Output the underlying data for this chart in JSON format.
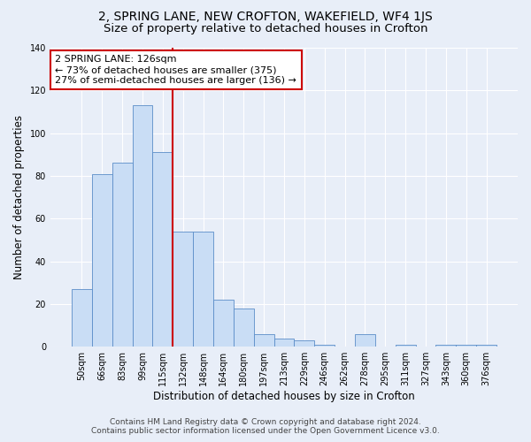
{
  "title": "2, SPRING LANE, NEW CROFTON, WAKEFIELD, WF4 1JS",
  "subtitle": "Size of property relative to detached houses in Crofton",
  "xlabel": "Distribution of detached houses by size in Crofton",
  "ylabel": "Number of detached properties",
  "footer_line1": "Contains HM Land Registry data © Crown copyright and database right 2024.",
  "footer_line2": "Contains public sector information licensed under the Open Government Licence v3.0.",
  "bar_labels": [
    "50sqm",
    "66sqm",
    "83sqm",
    "99sqm",
    "115sqm",
    "132sqm",
    "148sqm",
    "164sqm",
    "180sqm",
    "197sqm",
    "213sqm",
    "229sqm",
    "246sqm",
    "262sqm",
    "278sqm",
    "295sqm",
    "311sqm",
    "327sqm",
    "343sqm",
    "360sqm",
    "376sqm"
  ],
  "bar_values": [
    27,
    81,
    86,
    113,
    91,
    54,
    54,
    22,
    18,
    6,
    4,
    3,
    1,
    0,
    6,
    0,
    1,
    0,
    1,
    1,
    1
  ],
  "bar_color": "#c9ddf5",
  "bar_edge_color": "#5b8dc8",
  "vline_x_idx": 4,
  "vline_color": "#cc0000",
  "annotation_line1": "2 SPRING LANE: 126sqm",
  "annotation_line2": "← 73% of detached houses are smaller (375)",
  "annotation_line3": "27% of semi-detached houses are larger (136) →",
  "annotation_box_color": "#ffffff",
  "annotation_box_edge": "#cc0000",
  "ylim": [
    0,
    140
  ],
  "yticks": [
    0,
    20,
    40,
    60,
    80,
    100,
    120,
    140
  ],
  "bg_color": "#e8eef8",
  "plot_bg_color": "#e8eef8",
  "grid_color": "#ffffff",
  "title_fontsize": 10,
  "subtitle_fontsize": 9.5,
  "axis_label_fontsize": 8.5,
  "tick_fontsize": 7,
  "footer_fontsize": 6.5,
  "annotation_fontsize": 8
}
